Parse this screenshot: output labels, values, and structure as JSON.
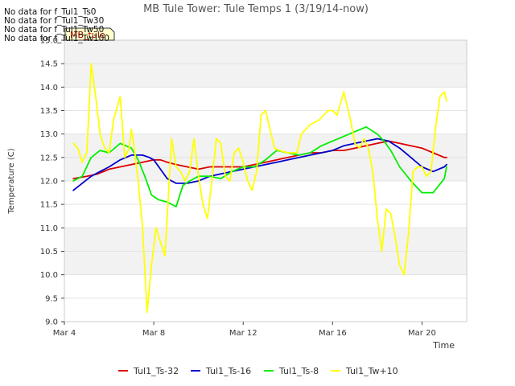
{
  "chart_data": {
    "type": "line",
    "title": "MB Tule Tower: Tule Temps 1 (3/19/14-now)",
    "xlabel": "Time",
    "ylabel": "Temperature (C)",
    "ylim": [
      9.0,
      15.0
    ],
    "xlim_days": [
      4,
      22
    ],
    "yticks": [
      "9.0",
      "9.5",
      "10.0",
      "10.5",
      "11.0",
      "11.5",
      "12.0",
      "12.5",
      "13.0",
      "13.5",
      "14.0",
      "14.5",
      "15.0"
    ],
    "xticks": [
      {
        "label": "Mar 4",
        "day": 4
      },
      {
        "label": "Mar 8",
        "day": 8
      },
      {
        "label": "Mar 12",
        "day": 12
      },
      {
        "label": "Mar 16",
        "day": 16
      },
      {
        "label": "Mar 20",
        "day": 20
      }
    ],
    "no_data_messages": [
      "No data for f_Tul1_Ts0",
      "No data for f_Tul1_Tw30",
      "No data for f_Tul1_Tw50",
      "No data for f_Tul1_Tw100"
    ],
    "tooltip_label": "MB_tule",
    "legend_position": "bottom",
    "series": [
      {
        "name": "Tul1_Ts-32",
        "color": "#dd0000",
        "x": [
          4.4,
          5.0,
          5.5,
          6.0,
          6.5,
          7.0,
          7.5,
          8.0,
          8.3,
          8.6,
          9.0,
          9.5,
          10.0,
          10.5,
          11.0,
          11.5,
          12.0,
          12.5,
          13.0,
          13.5,
          14.0,
          14.5,
          15.0,
          15.5,
          16.0,
          16.5,
          17.0,
          17.5,
          18.0,
          18.5,
          19.0,
          19.5,
          20.0,
          20.5,
          21.0,
          21.1
        ],
        "y": [
          12.05,
          12.1,
          12.15,
          12.25,
          12.3,
          12.35,
          12.4,
          12.45,
          12.45,
          12.4,
          12.35,
          12.3,
          12.25,
          12.3,
          12.3,
          12.3,
          12.3,
          12.35,
          12.4,
          12.45,
          12.5,
          12.55,
          12.6,
          12.6,
          12.65,
          12.65,
          12.7,
          12.75,
          12.8,
          12.85,
          12.8,
          12.75,
          12.7,
          12.6,
          12.5,
          12.5
        ]
      },
      {
        "name": "Tul1_Ts-16",
        "color": "#0000cc",
        "x": [
          4.4,
          4.8,
          5.2,
          5.6,
          6.0,
          6.5,
          7.0,
          7.5,
          7.8,
          8.0,
          8.3,
          8.6,
          9.0,
          9.5,
          10.0,
          10.5,
          11.0,
          11.5,
          12.0,
          12.5,
          13.0,
          13.5,
          14.0,
          14.5,
          15.0,
          15.5,
          16.0,
          16.5,
          17.0,
          17.5,
          18.0,
          18.5,
          19.0,
          19.5,
          20.0,
          20.5,
          21.0,
          21.1
        ],
        "y": [
          11.8,
          11.95,
          12.1,
          12.2,
          12.3,
          12.45,
          12.55,
          12.55,
          12.5,
          12.45,
          12.25,
          12.05,
          11.95,
          11.95,
          12.0,
          12.1,
          12.15,
          12.2,
          12.25,
          12.3,
          12.35,
          12.4,
          12.45,
          12.5,
          12.55,
          12.6,
          12.65,
          12.75,
          12.8,
          12.85,
          12.9,
          12.85,
          12.7,
          12.5,
          12.3,
          12.2,
          12.3,
          12.35
        ]
      },
      {
        "name": "Tul1_Ts-8",
        "color": "#00ee00",
        "x": [
          4.4,
          4.8,
          5.2,
          5.6,
          6.0,
          6.5,
          7.0,
          7.3,
          7.6,
          7.9,
          8.2,
          8.6,
          9.0,
          9.3,
          9.6,
          10.0,
          10.5,
          11.0,
          11.5,
          12.0,
          12.5,
          13.0,
          13.5,
          14.0,
          14.5,
          15.0,
          15.5,
          16.0,
          16.5,
          17.0,
          17.5,
          18.0,
          18.3,
          18.6,
          19.0,
          19.5,
          20.0,
          20.5,
          21.0,
          21.1
        ],
        "y": [
          12.0,
          12.1,
          12.5,
          12.65,
          12.6,
          12.8,
          12.7,
          12.45,
          12.1,
          11.7,
          11.6,
          11.55,
          11.45,
          11.9,
          12.0,
          12.1,
          12.1,
          12.05,
          12.2,
          12.3,
          12.3,
          12.45,
          12.65,
          12.6,
          12.55,
          12.6,
          12.75,
          12.85,
          12.95,
          13.05,
          13.15,
          13.0,
          12.85,
          12.65,
          12.3,
          12.0,
          11.75,
          11.75,
          12.05,
          12.3
        ]
      },
      {
        "name": "Tul1_Tw+10",
        "color": "#ffff00",
        "x": [
          4.4,
          4.6,
          4.8,
          5.0,
          5.1,
          5.2,
          5.4,
          5.6,
          5.8,
          6.0,
          6.2,
          6.5,
          6.7,
          6.9,
          7.0,
          7.1,
          7.3,
          7.5,
          7.7,
          7.9,
          8.1,
          8.3,
          8.5,
          8.8,
          9.0,
          9.2,
          9.4,
          9.6,
          9.8,
          10.0,
          10.2,
          10.4,
          10.6,
          10.8,
          11.0,
          11.2,
          11.4,
          11.6,
          11.8,
          12.0,
          12.2,
          12.4,
          12.6,
          12.8,
          13.0,
          13.2,
          13.4,
          13.6,
          14.0,
          14.4,
          14.6,
          14.8,
          15.0,
          15.4,
          15.6,
          15.8,
          16.0,
          16.2,
          16.5,
          16.8,
          17.0,
          17.2,
          17.4,
          17.6,
          17.8,
          18.0,
          18.2,
          18.4,
          18.6,
          18.8,
          19.0,
          19.2,
          19.4,
          19.6,
          19.8,
          20.0,
          20.2,
          20.4,
          20.6,
          20.8,
          21.0,
          21.1
        ],
        "y": [
          12.8,
          12.7,
          12.4,
          12.6,
          13.5,
          14.5,
          13.8,
          13.0,
          12.7,
          12.6,
          13.3,
          13.8,
          12.5,
          12.7,
          13.1,
          12.8,
          12.0,
          11.0,
          9.2,
          10.2,
          11.0,
          10.7,
          10.4,
          12.9,
          12.3,
          12.2,
          12.0,
          12.2,
          12.9,
          12.1,
          11.5,
          11.2,
          12.0,
          12.9,
          12.8,
          12.1,
          12.0,
          12.6,
          12.7,
          12.4,
          12.0,
          11.8,
          12.2,
          13.4,
          13.5,
          13.1,
          12.7,
          12.65,
          12.6,
          12.6,
          13.0,
          13.1,
          13.2,
          13.3,
          13.4,
          13.5,
          13.5,
          13.4,
          13.9,
          13.3,
          12.8,
          12.7,
          12.9,
          12.7,
          12.2,
          11.2,
          10.5,
          11.4,
          11.3,
          10.8,
          10.2,
          10.0,
          10.9,
          12.2,
          12.3,
          12.3,
          12.1,
          12.2,
          13.1,
          13.8,
          13.9,
          13.7
        ]
      }
    ]
  }
}
